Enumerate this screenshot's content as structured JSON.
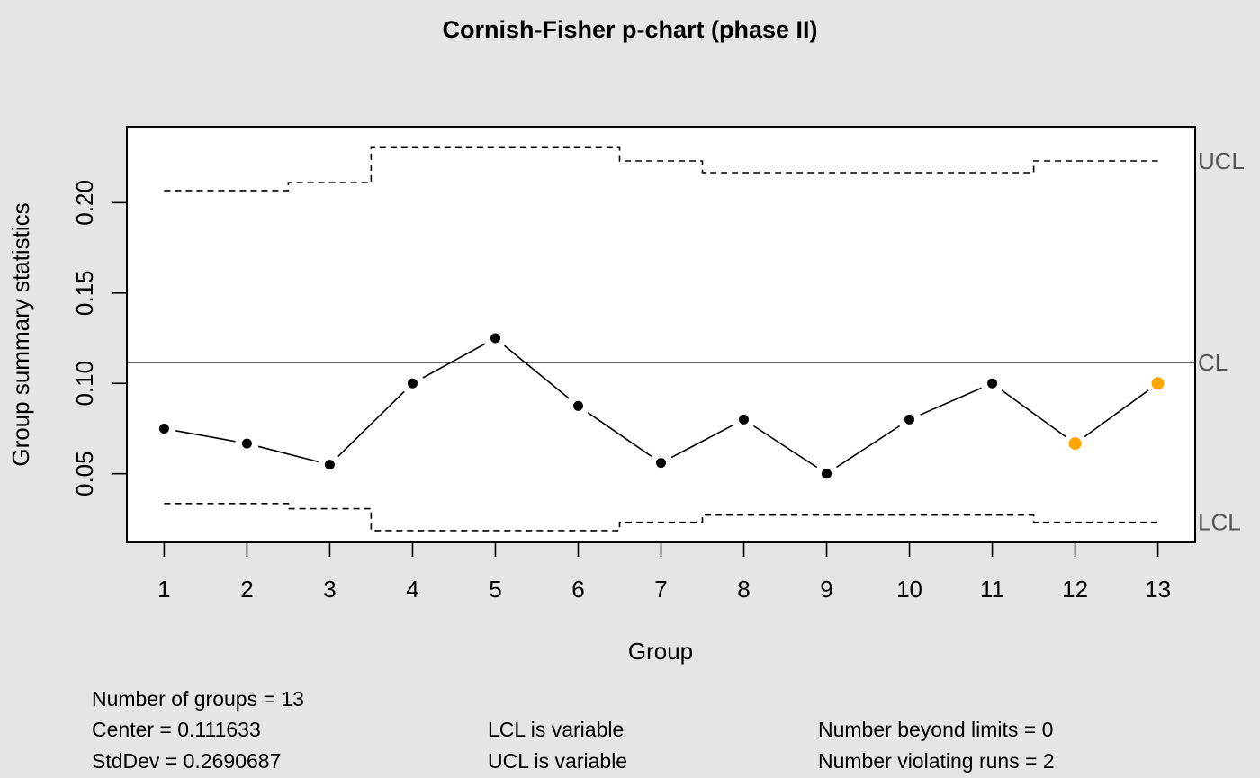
{
  "chart_data": {
    "type": "line",
    "title": "Cornish-Fisher p-chart (phase II)",
    "xlabel": "Group",
    "ylabel": "Group summary statistics",
    "x": [
      1,
      2,
      3,
      4,
      5,
      6,
      7,
      8,
      9,
      10,
      11,
      12,
      13
    ],
    "xlim": [
      0.55,
      13.45
    ],
    "ylim": [
      0.012,
      0.242
    ],
    "yticks": [
      0.05,
      0.1,
      0.15,
      0.2
    ],
    "ytick_labels": [
      "0.05",
      "0.10",
      "0.15",
      "0.20"
    ],
    "xtick_labels": [
      "1",
      "2",
      "3",
      "4",
      "5",
      "6",
      "7",
      "8",
      "9",
      "10",
      "11",
      "12",
      "13"
    ],
    "series": [
      {
        "values": [
          0.075,
          0.0667,
          0.055,
          0.1,
          0.125,
          0.0875,
          0.056,
          0.08,
          0.05,
          0.08,
          0.1,
          0.0667,
          0.1
        ],
        "colors": [
          "#000000",
          "#000000",
          "#000000",
          "#000000",
          "#000000",
          "#000000",
          "#000000",
          "#000000",
          "#000000",
          "#000000",
          "#000000",
          "#ffa500",
          "#ffa500"
        ]
      }
    ],
    "center": 0.111633,
    "ucl": [
      0.2067,
      0.2067,
      0.2111,
      0.2309,
      0.2309,
      0.2309,
      0.2231,
      0.2166,
      0.2166,
      0.2166,
      0.2166,
      0.2231,
      0.2231
    ],
    "lcl": [
      0.0335,
      0.0335,
      0.0306,
      0.0185,
      0.0185,
      0.0185,
      0.0231,
      0.0271,
      0.0271,
      0.0271,
      0.0271,
      0.0231,
      0.0231
    ],
    "limit_labels": {
      "ucl": "UCL",
      "cl": "CL",
      "lcl": "LCL"
    },
    "grid": false,
    "colors": {
      "background": "#e5e5e5",
      "plot_bg": "#ffffff",
      "point": "#000000",
      "violating_point": "#ffa500",
      "limit_label": "#555555"
    }
  },
  "stats": {
    "groups": "Number of groups = 13",
    "center": "Center = 0.111633",
    "stddev": "StdDev = 0.2690687",
    "lcl": "LCL is variable",
    "ucl": "UCL is variable",
    "beyond": "Number beyond limits = 0",
    "violating": "Number violating runs = 2"
  }
}
